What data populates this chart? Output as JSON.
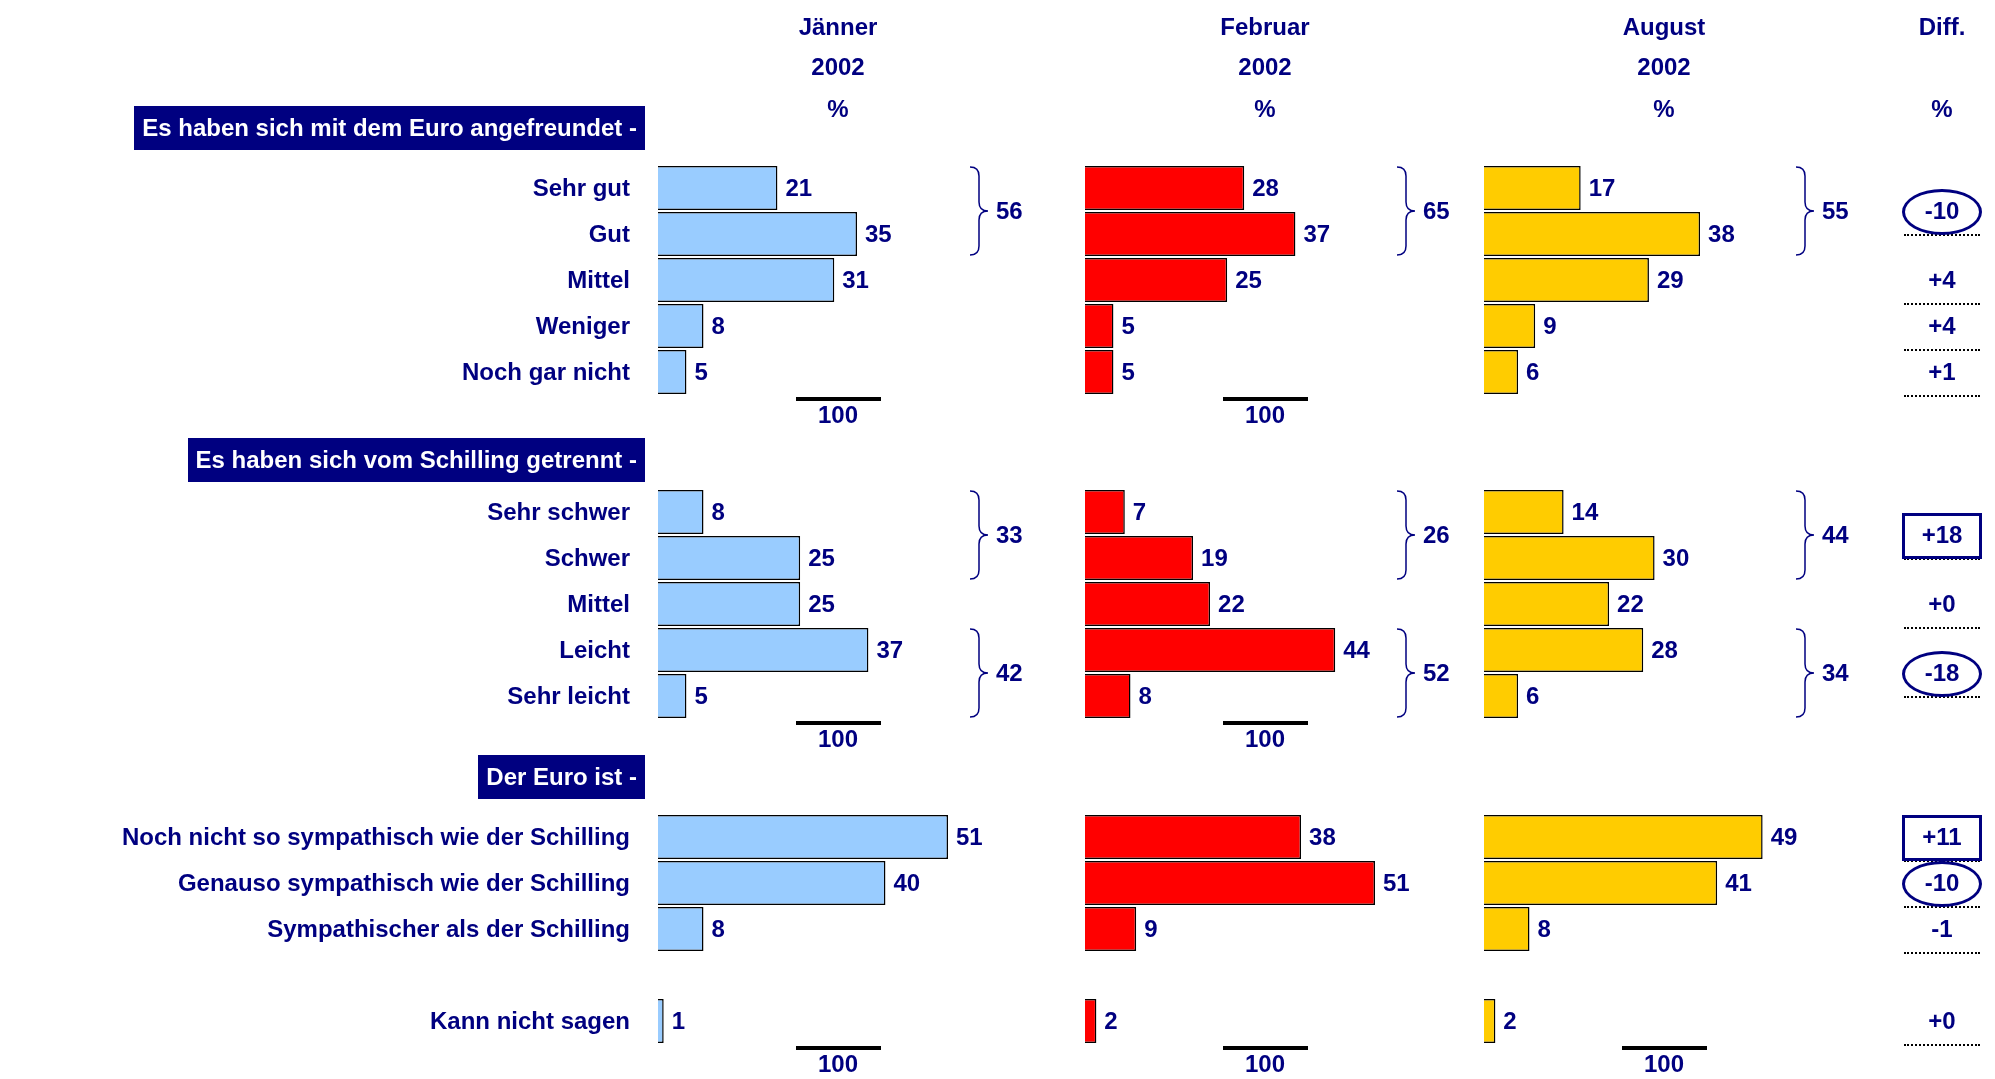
{
  "chart_data": [
    {
      "type": "bar",
      "orientation": "horizontal",
      "title": "Jänner 2002",
      "subtitle": "%",
      "ylabel": "Es haben sich mit dem Euro angefreundet -",
      "categories": [
        "Sehr gut",
        "Gut",
        "Mittel",
        "Weniger",
        "Noch gar nicht"
      ],
      "values": [
        21,
        35,
        31,
        8,
        5
      ],
      "color": "#99ccff",
      "tick_labels": "y",
      "data_labels": true,
      "annotations": [
        "56",
        "100"
      ]
    },
    {
      "type": "bar",
      "orientation": "horizontal",
      "title": "Februar 2002",
      "subtitle": "%",
      "categories": [
        null,
        null,
        null,
        null,
        null
      ],
      "values": [
        28,
        37,
        25,
        5,
        5
      ],
      "color": "#ff0000",
      "tick_labels": false,
      "data_labels": true,
      "annotations": [
        "65",
        "100"
      ]
    },
    {
      "type": "bar",
      "orientation": "horizontal",
      "title": "August 2002",
      "subtitle": "%",
      "categories": [
        null,
        null,
        null,
        null,
        null
      ],
      "values": [
        17,
        38,
        29,
        9,
        6
      ],
      "color": "#ffcc00",
      "tick_labels": false,
      "data_labels": true,
      "annotations": [
        "55"
      ]
    },
    {
      "type": "other",
      "title": "Diff.",
      "subtitle": "%",
      "annotations": [
        "-10",
        "+4",
        "+4",
        "+1"
      ]
    },
    {
      "type": "bar",
      "orientation": "horizontal",
      "ylabel": "Es haben sich vom Schilling getrennt -",
      "categories": [
        "Sehr schwer",
        "Schwer",
        "Mittel",
        "Leicht",
        "Sehr leicht"
      ],
      "values": [
        8,
        25,
        25,
        37,
        5
      ],
      "color": "#99ccff",
      "tick_labels": "y",
      "data_labels": true,
      "annotations": [
        "33",
        "42",
        "100"
      ]
    },
    {
      "type": "bar",
      "orientation": "horizontal",
      "categories": [
        null,
        null,
        null,
        null,
        null
      ],
      "values": [
        7,
        19,
        22,
        44,
        8
      ],
      "color": "#ff0000",
      "tick_labels": false,
      "data_labels": true,
      "annotations": [
        "26",
        "52",
        "100"
      ]
    },
    {
      "type": "bar",
      "orientation": "horizontal",
      "categories": [
        null,
        null,
        null,
        null,
        null
      ],
      "values": [
        14,
        30,
        22,
        28,
        6
      ],
      "color": "#ffcc00",
      "tick_labels": false,
      "data_labels": true,
      "annotations": [
        "44",
        "34"
      ]
    },
    {
      "type": "other",
      "annotations": [
        "+18",
        "+0",
        "-18"
      ]
    },
    {
      "type": "bar",
      "orientation": "horizontal",
      "ylabel": "Der Euro ist -",
      "categories": [
        "Noch nicht so sympathisch wie der Schilling",
        "Genauso sympathisch wie der Schilling",
        "Sympathischer als der Schilling"
      ],
      "values": [
        51,
        40,
        8
      ],
      "color": "#99ccff",
      "tick_labels": "y",
      "data_labels": true
    },
    {
      "type": "bar",
      "orientation": "horizontal",
      "categories": [
        null,
        null,
        null
      ],
      "values": [
        38,
        51,
        9
      ],
      "color": "#ff0000",
      "tick_labels": false,
      "data_labels": true
    },
    {
      "type": "bar",
      "orientation": "horizontal",
      "categories": [
        null,
        null,
        null
      ],
      "values": [
        49,
        41,
        8
      ],
      "color": "#ffcc00",
      "tick_labels": false,
      "data_labels": true
    },
    {
      "type": "other",
      "annotations": [
        "+11",
        "-10",
        "-1"
      ]
    },
    {
      "type": "bar",
      "orientation": "horizontal",
      "categories": [
        "Kann nicht sagen"
      ],
      "values": [
        1
      ],
      "color": "#99ccff",
      "tick_labels": "y",
      "data_labels": true,
      "annotations": [
        "100"
      ]
    },
    {
      "type": "bar",
      "orientation": "horizontal",
      "categories": [
        null
      ],
      "values": [
        2
      ],
      "color": "#ff0000",
      "tick_labels": false,
      "data_labels": true,
      "annotations": [
        "100"
      ]
    },
    {
      "type": "bar",
      "orientation": "horizontal",
      "categories": [
        null
      ],
      "values": [
        2
      ],
      "color": "#ffcc00",
      "tick_labels": false,
      "data_labels": true,
      "annotations": [
        "100"
      ]
    },
    {
      "type": "other",
      "annotations": [
        "+0"
      ]
    }
  ]
}
